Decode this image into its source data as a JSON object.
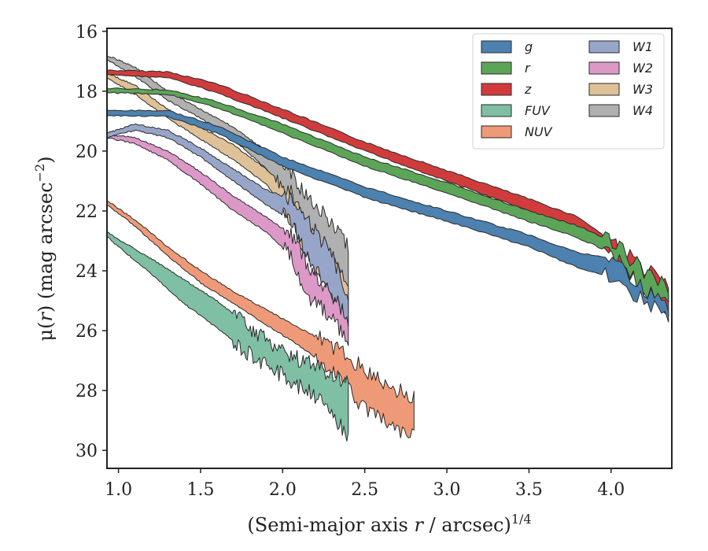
{
  "chart_data": {
    "type": "area",
    "xlabel_text": "(Semi-major axis ",
    "xlabel_var": "r",
    "xlabel_unit": " / arcsec)",
    "xlabel_exp": "1/4",
    "ylabel_prefix": "μ(",
    "ylabel_var": "r",
    "ylabel_suffix": ") (mag arcsec",
    "ylabel_exp": "−2",
    "ylabel_close": ")",
    "xlim": [
      0.93,
      4.37
    ],
    "ylim": [
      30.6,
      15.9
    ],
    "y_inverted": true,
    "grid": false,
    "legend_position": "top-right",
    "legend_columns": 2,
    "xticks": [
      1.0,
      1.5,
      2.0,
      2.5,
      3.0,
      3.5,
      4.0
    ],
    "xtick_labels": [
      "1.0",
      "1.5",
      "2.0",
      "2.5",
      "3.0",
      "3.5",
      "4.0"
    ],
    "yticks": [
      16,
      18,
      20,
      22,
      24,
      26,
      28,
      30
    ],
    "ytick_labels": [
      "16",
      "18",
      "20",
      "22",
      "24",
      "26",
      "28",
      "30"
    ],
    "series": [
      {
        "name": "g",
        "color": "#4c81b0",
        "noise_seed": 3,
        "noise_onset": 3.95,
        "upper": [
          [
            0.93,
            18.65
          ],
          [
            1.3,
            18.65
          ],
          [
            1.6,
            19.15
          ],
          [
            2.0,
            20.2
          ],
          [
            2.5,
            21.2
          ],
          [
            3.0,
            22.0
          ],
          [
            3.5,
            22.8
          ],
          [
            3.8,
            23.4
          ],
          [
            4.0,
            23.6
          ],
          [
            4.2,
            24.6
          ],
          [
            4.35,
            25.1
          ]
        ],
        "lower": [
          [
            0.93,
            18.8
          ],
          [
            1.3,
            18.85
          ],
          [
            1.6,
            19.4
          ],
          [
            2.0,
            20.5
          ],
          [
            2.5,
            21.55
          ],
          [
            3.0,
            22.35
          ],
          [
            3.5,
            23.2
          ],
          [
            3.8,
            23.9
          ],
          [
            4.0,
            24.2
          ],
          [
            4.2,
            25.0
          ],
          [
            4.35,
            25.6
          ]
        ]
      },
      {
        "name": "r",
        "color": "#5ca558",
        "noise_seed": 5,
        "noise_onset": 3.95,
        "upper": [
          [
            0.93,
            17.9
          ],
          [
            1.3,
            17.95
          ],
          [
            1.6,
            18.35
          ],
          [
            2.0,
            19.1
          ],
          [
            2.5,
            20.2
          ],
          [
            3.0,
            21.05
          ],
          [
            3.5,
            22.0
          ],
          [
            3.8,
            22.5
          ],
          [
            4.0,
            23.0
          ],
          [
            4.2,
            24.0
          ],
          [
            4.35,
            24.6
          ]
        ],
        "lower": [
          [
            0.93,
            18.05
          ],
          [
            1.3,
            18.1
          ],
          [
            1.6,
            18.55
          ],
          [
            2.0,
            19.4
          ],
          [
            2.5,
            20.5
          ],
          [
            3.0,
            21.4
          ],
          [
            3.5,
            22.35
          ],
          [
            3.8,
            22.9
          ],
          [
            4.0,
            23.4
          ],
          [
            4.2,
            24.6
          ],
          [
            4.35,
            25.0
          ]
        ]
      },
      {
        "name": "z",
        "color": "#d03c3c",
        "noise_seed": 7,
        "noise_onset": 3.95,
        "upper": [
          [
            0.93,
            17.3
          ],
          [
            1.3,
            17.35
          ],
          [
            1.6,
            17.75
          ],
          [
            2.0,
            18.6
          ],
          [
            2.5,
            19.7
          ],
          [
            3.0,
            20.65
          ],
          [
            3.5,
            21.6
          ],
          [
            3.8,
            22.2
          ],
          [
            4.0,
            23.0
          ],
          [
            4.2,
            23.9
          ],
          [
            4.35,
            24.5
          ]
        ],
        "lower": [
          [
            0.93,
            17.45
          ],
          [
            1.3,
            17.55
          ],
          [
            1.6,
            18.05
          ],
          [
            2.0,
            18.9
          ],
          [
            2.5,
            20.0
          ],
          [
            3.0,
            21.0
          ],
          [
            3.5,
            22.0
          ],
          [
            3.8,
            22.6
          ],
          [
            4.0,
            23.4
          ],
          [
            4.2,
            24.6
          ],
          [
            4.35,
            25.5
          ]
        ]
      },
      {
        "name": "FUV",
        "color": "#7fbfa4",
        "noise_seed": 11,
        "noise_onset": 1.7,
        "upper": [
          [
            0.93,
            22.7
          ],
          [
            1.0,
            22.95
          ],
          [
            1.2,
            23.6
          ],
          [
            1.4,
            24.3
          ],
          [
            1.6,
            25.0
          ],
          [
            1.8,
            25.9
          ],
          [
            2.0,
            26.7
          ],
          [
            2.2,
            27.2
          ],
          [
            2.4,
            27.8
          ]
        ],
        "lower": [
          [
            0.93,
            22.85
          ],
          [
            1.0,
            23.2
          ],
          [
            1.2,
            24.1
          ],
          [
            1.4,
            25.1
          ],
          [
            1.6,
            25.9
          ],
          [
            1.8,
            26.8
          ],
          [
            2.0,
            27.5
          ],
          [
            2.2,
            28.2
          ],
          [
            2.4,
            29.5
          ]
        ]
      },
      {
        "name": "NUV",
        "color": "#ee9a78",
        "noise_seed": 13,
        "noise_onset": 2.2,
        "upper": [
          [
            0.93,
            21.65
          ],
          [
            1.1,
            22.3
          ],
          [
            1.3,
            23.2
          ],
          [
            1.5,
            24.0
          ],
          [
            1.7,
            24.7
          ],
          [
            1.9,
            25.3
          ],
          [
            2.1,
            25.9
          ],
          [
            2.3,
            26.5
          ],
          [
            2.5,
            27.3
          ],
          [
            2.7,
            28.0
          ],
          [
            2.8,
            28.2
          ]
        ],
        "lower": [
          [
            0.93,
            21.8
          ],
          [
            1.1,
            22.5
          ],
          [
            1.3,
            23.5
          ],
          [
            1.5,
            24.4
          ],
          [
            1.7,
            25.1
          ],
          [
            1.9,
            25.8
          ],
          [
            2.1,
            26.5
          ],
          [
            2.3,
            27.3
          ],
          [
            2.5,
            28.6
          ],
          [
            2.7,
            29.3
          ],
          [
            2.8,
            29.5
          ]
        ]
      },
      {
        "name": "W1",
        "color": "#97a6c8",
        "noise_seed": 17,
        "noise_onset": 2.0,
        "upper": [
          [
            0.93,
            19.4
          ],
          [
            1.1,
            19.1
          ],
          [
            1.3,
            19.3
          ],
          [
            1.5,
            19.9
          ],
          [
            1.7,
            20.6
          ],
          [
            1.9,
            21.3
          ],
          [
            2.05,
            21.6
          ],
          [
            2.15,
            22.3
          ],
          [
            2.3,
            23.5
          ],
          [
            2.4,
            24.8
          ]
        ],
        "lower": [
          [
            0.93,
            19.55
          ],
          [
            1.1,
            19.3
          ],
          [
            1.3,
            19.55
          ],
          [
            1.5,
            20.2
          ],
          [
            1.7,
            21.0
          ],
          [
            1.9,
            21.8
          ],
          [
            2.05,
            22.3
          ],
          [
            2.15,
            23.6
          ],
          [
            2.3,
            24.8
          ],
          [
            2.4,
            25.6
          ]
        ]
      },
      {
        "name": "W2",
        "color": "#dc99c8",
        "noise_seed": 19,
        "noise_onset": 2.0,
        "upper": [
          [
            0.93,
            19.45
          ],
          [
            1.1,
            19.55
          ],
          [
            1.3,
            20.0
          ],
          [
            1.5,
            20.7
          ],
          [
            1.7,
            21.5
          ],
          [
            1.9,
            22.2
          ],
          [
            2.05,
            22.8
          ],
          [
            2.15,
            23.8
          ],
          [
            2.3,
            24.8
          ],
          [
            2.4,
            25.5
          ]
        ],
        "lower": [
          [
            0.93,
            19.55
          ],
          [
            1.1,
            19.75
          ],
          [
            1.3,
            20.3
          ],
          [
            1.5,
            21.1
          ],
          [
            1.7,
            22.0
          ],
          [
            1.9,
            22.7
          ],
          [
            2.05,
            23.5
          ],
          [
            2.15,
            24.8
          ],
          [
            2.3,
            25.6
          ],
          [
            2.4,
            26.3
          ]
        ]
      },
      {
        "name": "W3",
        "color": "#dfc198",
        "noise_seed": 23,
        "noise_onset": 1.95,
        "upper": [
          [
            0.93,
            17.4
          ],
          [
            1.1,
            17.8
          ],
          [
            1.3,
            18.6
          ],
          [
            1.5,
            19.2
          ],
          [
            1.7,
            19.8
          ],
          [
            1.9,
            20.6
          ],
          [
            2.05,
            21.4
          ],
          [
            2.15,
            22.5
          ],
          [
            2.3,
            23.6
          ],
          [
            2.4,
            24.6
          ]
        ],
        "lower": [
          [
            0.93,
            17.55
          ],
          [
            1.1,
            18.1
          ],
          [
            1.3,
            18.9
          ],
          [
            1.5,
            19.6
          ],
          [
            1.7,
            20.3
          ],
          [
            1.9,
            21.1
          ],
          [
            2.05,
            22.3
          ],
          [
            2.15,
            23.5
          ],
          [
            2.3,
            24.8
          ],
          [
            2.4,
            25.6
          ]
        ]
      },
      {
        "name": "W4",
        "color": "#b0b0b0",
        "noise_seed": 29,
        "noise_onset": 2.0,
        "upper": [
          [
            0.93,
            16.8
          ],
          [
            1.1,
            17.2
          ],
          [
            1.3,
            18.0
          ],
          [
            1.5,
            18.6
          ],
          [
            1.7,
            19.2
          ],
          [
            1.9,
            20.0
          ],
          [
            2.05,
            20.7
          ],
          [
            2.15,
            21.6
          ],
          [
            2.3,
            22.4
          ],
          [
            2.4,
            23.2
          ]
        ],
        "lower": [
          [
            0.93,
            16.95
          ],
          [
            1.1,
            17.5
          ],
          [
            1.3,
            18.3
          ],
          [
            1.5,
            18.9
          ],
          [
            1.7,
            19.6
          ],
          [
            1.9,
            20.6
          ],
          [
            2.05,
            21.9
          ],
          [
            2.15,
            23.2
          ],
          [
            2.3,
            24.4
          ],
          [
            2.4,
            25.2
          ]
        ]
      }
    ]
  }
}
